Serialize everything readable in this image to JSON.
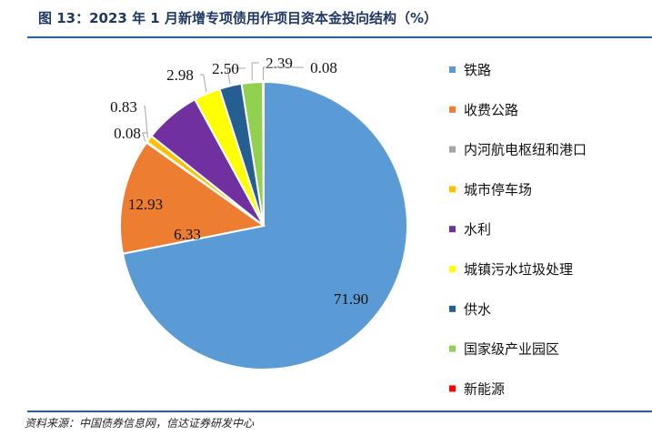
{
  "title": "图 13：2023 年 1 月新增专项债用作项目资本金投向结构（%）",
  "source": "资料来源：中国债券信息网，信达证券研发中心",
  "chart_data": {
    "type": "pie",
    "title": "图 13：2023 年 1 月新增专项债用作项目资本金投向结构（%）",
    "start_angle": "12 o'clock, clockwise",
    "legend_placement": "right",
    "categories": [
      "铁路",
      "收费公路",
      "内河航电枢纽和港口",
      "城市停车场",
      "水利",
      "城镇污水垃圾处理",
      "供水",
      "国家级产业园区",
      "新能源"
    ],
    "values": [
      71.9,
      12.93,
      0.08,
      0.83,
      6.33,
      2.98,
      2.5,
      2.39,
      0.08
    ],
    "labels": [
      "71.90",
      "12.93",
      "0.08",
      "0.83",
      "6.33",
      "2.98",
      "2.50",
      "2.39",
      "0.08"
    ],
    "colors": [
      "#5B9BD5",
      "#ED7D31",
      "#A5A5A5",
      "#FFC000",
      "#7030A0",
      "#FFFF00",
      "#255E91",
      "#92D050",
      "#FF0000"
    ]
  }
}
